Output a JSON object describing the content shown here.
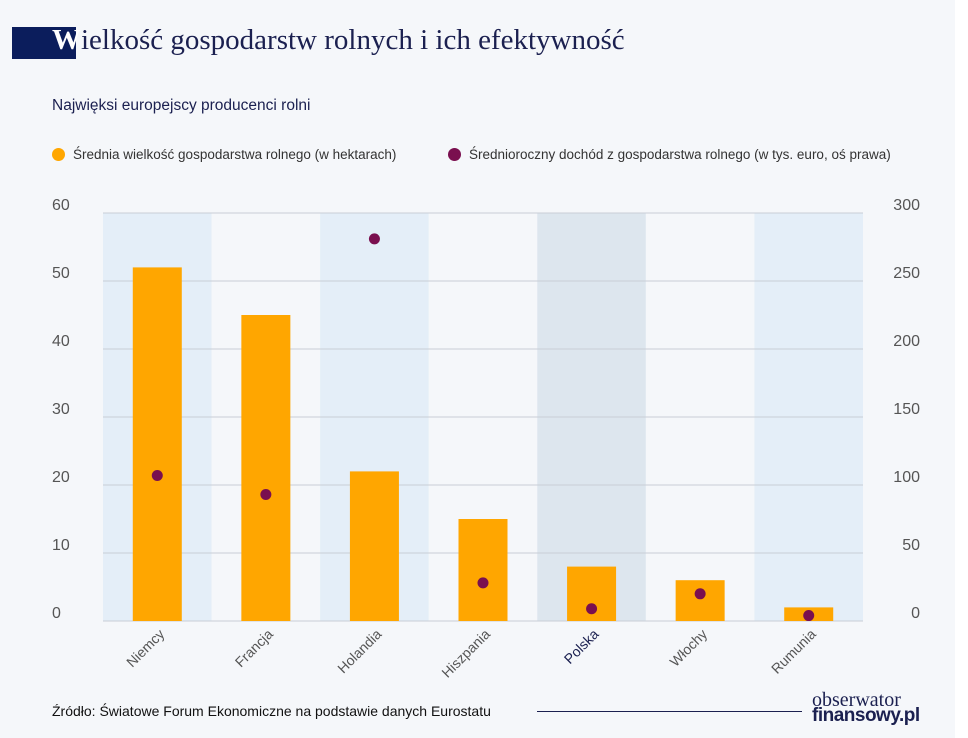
{
  "header": {
    "title_first_letter": "W",
    "title_rest": "ielkość gospodarstw rolnych i ich efektywność",
    "subtitle": "Najwięksi europejscy producenci rolni"
  },
  "chart_data": {
    "type": "bar+scatter",
    "categories": [
      "Niemcy",
      "Francja",
      "Holandia",
      "Hiszpania",
      "Polska",
      "Włochy",
      "Rumunia"
    ],
    "highlighted_category": "Polska",
    "series": [
      {
        "name": "Średnia wielkość gospodarstwa rolnego (w hektarach)",
        "type": "bar",
        "axis": "left",
        "color": "#ffa600",
        "values": [
          52,
          45,
          22,
          15,
          8,
          6,
          2
        ]
      },
      {
        "name": "Średnioroczny dochód z gospodarstwa rolnego (w tys. euro, oś prawa)",
        "type": "scatter",
        "axis": "right",
        "color": "#7a0f4f",
        "values": [
          107,
          93,
          281,
          28,
          9,
          20,
          4
        ]
      }
    ],
    "y_left": {
      "ylim": [
        0,
        60
      ],
      "ticks": [
        "0",
        "10",
        "20",
        "30",
        "40",
        "50",
        "60"
      ]
    },
    "y_right": {
      "ylim": [
        0,
        300
      ],
      "ticks": [
        "0",
        "50",
        "100",
        "150",
        "200",
        "250",
        "300"
      ]
    },
    "grid": true,
    "legend_position": "top"
  },
  "footer": {
    "source": "Źródło: Światowe Forum Ekonomiczne na podstawie danych Eurostatu",
    "logo_line1": "obserwator",
    "logo_line2": "finansowy.pl"
  }
}
